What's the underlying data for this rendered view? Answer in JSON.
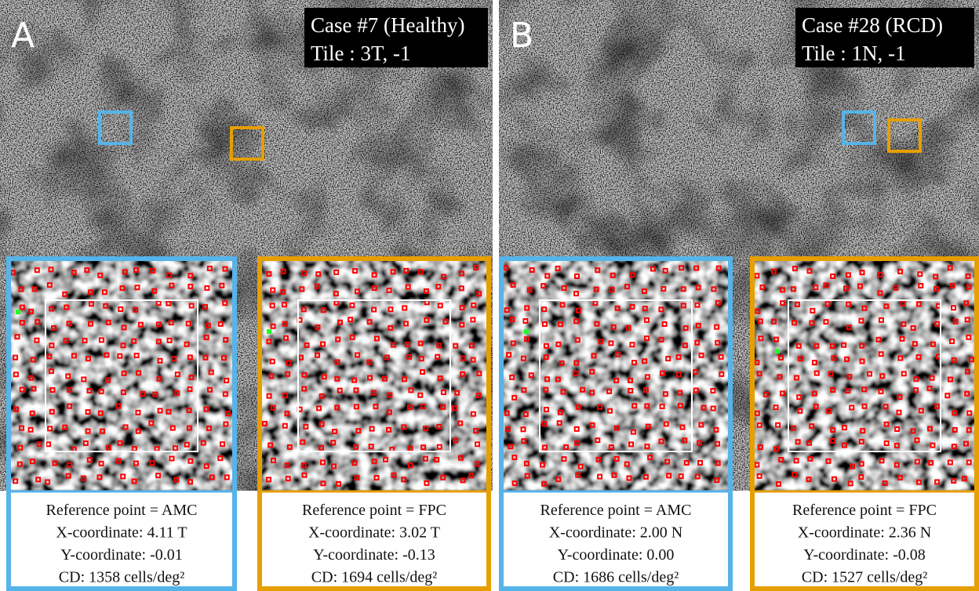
{
  "panels": [
    {
      "letter": "A",
      "case": "Case #7 (Healthy)",
      "tile": "Tile : 3T, -1",
      "insets": [
        {
          "lines": [
            "Reference point = AMC",
            "X-coordinate: 4.11 T",
            "Y-coordinate: -0.01",
            "CD: 1358 cells/deg²"
          ]
        },
        {
          "lines": [
            "Reference point = FPC",
            "X-coordinate: 3.02 T",
            "Y-coordinate: -0.13",
            "CD: 1694 cells/deg²"
          ]
        }
      ]
    },
    {
      "letter": "B",
      "case": "Case #28 (RCD)",
      "tile": "Tile : 1N, -1",
      "insets": [
        {
          "lines": [
            "Reference point = AMC",
            "X-coordinate: 2.00 N",
            "Y-coordinate: 0.00",
            "CD: 1686 cells/deg²"
          ]
        },
        {
          "lines": [
            "Reference point = FPC",
            "X-coordinate: 2.36 N",
            "Y-coordinate: -0.08",
            "CD: 1527 cells/deg²"
          ]
        }
      ]
    }
  ]
}
